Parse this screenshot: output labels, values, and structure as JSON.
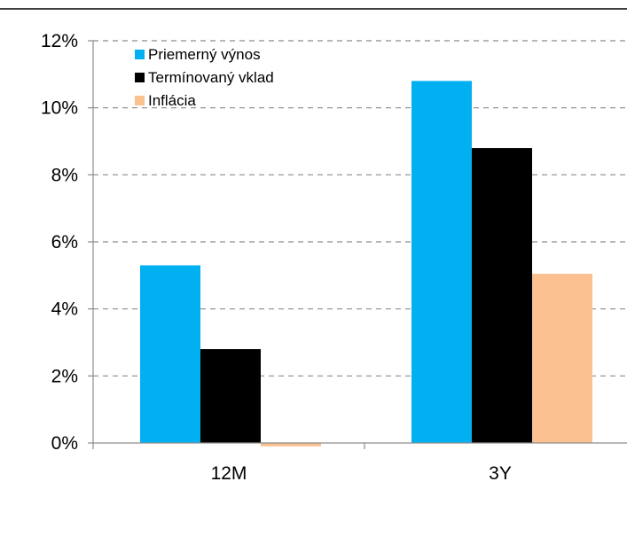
{
  "chart_data": {
    "type": "bar",
    "categories": [
      "12M",
      "3Y"
    ],
    "series": [
      {
        "name": "Priemerný výnos",
        "color": "#00B0F0",
        "values": [
          5.3,
          10.8
        ]
      },
      {
        "name": "Termínovaný vklad",
        "color": "#000000",
        "values": [
          2.8,
          8.8
        ]
      },
      {
        "name": "Inflácia",
        "color": "#FAC090",
        "values": [
          -0.1,
          5.05
        ]
      }
    ],
    "y_ticks": [
      "0%",
      "2%",
      "4%",
      "6%",
      "8%",
      "10%",
      "12%"
    ],
    "ylim": [
      0,
      12
    ],
    "y_tick_step": 2,
    "grid": true,
    "legend_position": "top-left"
  }
}
